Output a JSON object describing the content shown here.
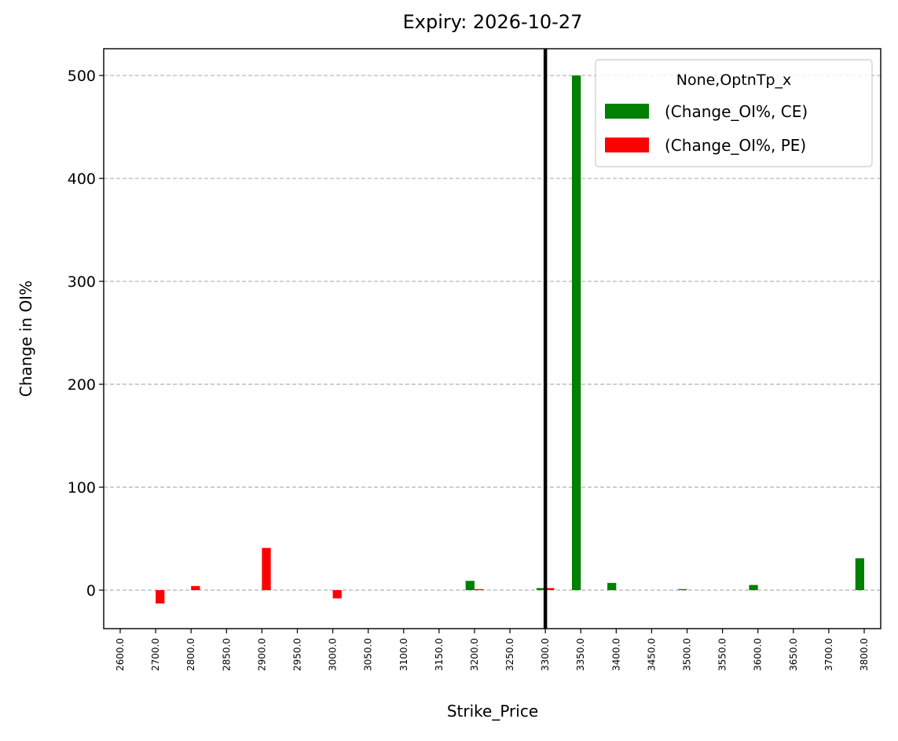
{
  "chart_data": {
    "type": "bar",
    "title": "Expiry: 2026-10-27",
    "x_label": "Strike_Price",
    "y_label": "Change in OI%",
    "categories": [
      "2600.0",
      "2700.0",
      "2800.0",
      "2850.0",
      "2900.0",
      "2950.0",
      "3000.0",
      "3050.0",
      "3100.0",
      "3150.0",
      "3200.0",
      "3250.0",
      "3300.0",
      "3350.0",
      "3400.0",
      "3450.0",
      "3500.0",
      "3550.0",
      "3600.0",
      "3650.0",
      "3700.0",
      "3800.0"
    ],
    "series": [
      {
        "name": "(Change_OI%, CE)",
        "color": "#008000",
        "values": [
          null,
          null,
          null,
          null,
          null,
          null,
          null,
          null,
          null,
          null,
          9,
          null,
          2,
          500,
          7,
          null,
          1,
          null,
          5,
          null,
          null,
          31
        ]
      },
      {
        "name": "(Change_OI%, PE)",
        "color": "#ff0000",
        "values": [
          null,
          -13,
          4,
          null,
          41,
          null,
          -8,
          null,
          null,
          null,
          1,
          null,
          2,
          null,
          null,
          null,
          null,
          null,
          null,
          null,
          null,
          null
        ]
      }
    ],
    "legend_title": "None,OptnTp_x",
    "legend_position": "upper right",
    "ylim": [
      -37.4,
      526
    ],
    "yticks": [
      0,
      100,
      200,
      300,
      400,
      500
    ],
    "grid": true,
    "vline": 3300
  }
}
